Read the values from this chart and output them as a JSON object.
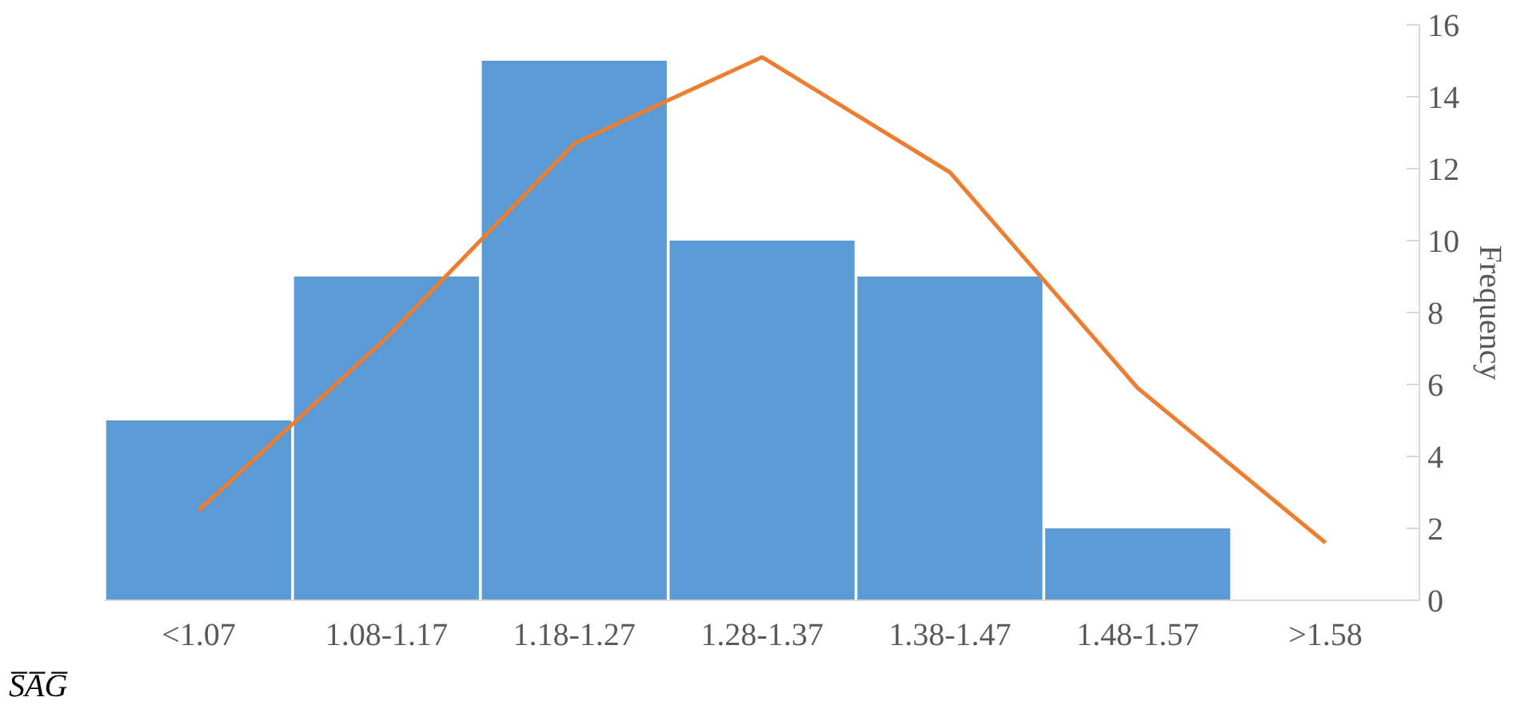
{
  "chart_data": {
    "type": "bar",
    "xlabel": "S̅A̅G̅",
    "ylabel": "Frequency",
    "categories": [
      "<1.07",
      "1.08-1.17",
      "1.18-1.27",
      "1.28-1.37",
      "1.38-1.47",
      "1.48-1.57",
      ">1.58"
    ],
    "series": [
      {
        "color": "#5b9bd5",
        "values": [
          5,
          9,
          15,
          10,
          9,
          2,
          0
        ]
      },
      {
        "type": "line",
        "color": "#ed7d31",
        "values": [
          2.5,
          7.3,
          12.7,
          15.1,
          11.9,
          5.9,
          1.6
        ]
      }
    ],
    "ylim": [
      0,
      16
    ],
    "yticks": [
      0,
      2,
      4,
      6,
      8,
      10,
      12,
      14,
      16
    ],
    "grid": false
  }
}
